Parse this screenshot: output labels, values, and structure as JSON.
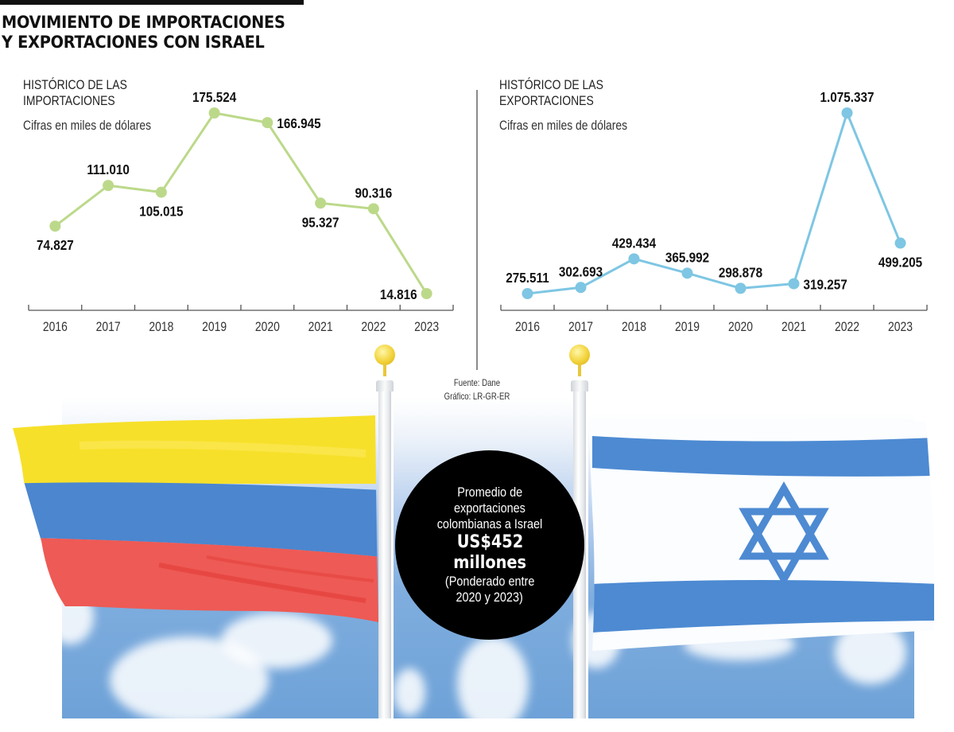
{
  "header": {
    "title_line1": "MOVIMIENTO DE IMPORTACIONES",
    "title_line2": "Y EXPORTACIONES CON ISRAEL"
  },
  "imports_panel": {
    "title_line1": "HISTÓRICO DE LAS",
    "title_line2": "IMPORTACIONES",
    "subtitle": "Cifras en miles de dólares",
    "line_color": "#bcd98a"
  },
  "exports_panel": {
    "title_line1": "HISTÓRICO DE LAS",
    "title_line2": "EXPORTACIONES",
    "subtitle": "Cifras en miles de dólares",
    "line_color": "#7ec6e3"
  },
  "chart_data": [
    {
      "type": "line",
      "title": "Histórico de las importaciones",
      "subtitle": "Cifras en miles de dólares",
      "xlabel": "",
      "ylabel": "Miles de dólares",
      "categories": [
        "2016",
        "2017",
        "2018",
        "2019",
        "2020",
        "2021",
        "2022",
        "2023"
      ],
      "values": [
        74827,
        111010,
        105015,
        175524,
        166945,
        95327,
        90316,
        14816
      ],
      "labels": [
        "74.827",
        "111.010",
        "105.015",
        "175.524",
        "166.945",
        "95.327",
        "90.316",
        "14.816"
      ],
      "label_pos": [
        "below",
        "above",
        "below",
        "above",
        "right",
        "below",
        "above",
        "left"
      ],
      "color": "#bcd98a",
      "grid": false,
      "legend": "none"
    },
    {
      "type": "line",
      "title": "Histórico de las exportaciones",
      "subtitle": "Cifras en miles de dólares",
      "xlabel": "",
      "ylabel": "Miles de dólares",
      "categories": [
        "2016",
        "2017",
        "2018",
        "2019",
        "2020",
        "2021",
        "2022",
        "2023"
      ],
      "values": [
        275511,
        302693,
        429434,
        365992,
        298878,
        319257,
        1075337,
        499205
      ],
      "labels": [
        "275.511",
        "302.693",
        "429.434",
        "365.992",
        "298.878",
        "319.257",
        "1.075.337",
        "499.205"
      ],
      "label_pos": [
        "above",
        "above",
        "above",
        "above",
        "above",
        "right",
        "above",
        "below"
      ],
      "color": "#7ec6e3",
      "grid": false,
      "legend": "none"
    }
  ],
  "source": {
    "line1": "Fuente: Dane",
    "line2": "Gráfico: LR-GR-ER"
  },
  "callout": {
    "line1": "Promedio de",
    "line2": "exportaciones",
    "line3": "colombianas a Israel",
    "amount": "US$452",
    "unit": "millones",
    "note1": "(Ponderado entre",
    "note2": "2020 y 2023)"
  },
  "flags": {
    "colombia": {
      "yellow": "#f7e02a",
      "blue": "#4b86cf",
      "red": "#ee5a55"
    },
    "israel": {
      "white": "#fbfdff",
      "blue": "#4d8ad2"
    }
  }
}
